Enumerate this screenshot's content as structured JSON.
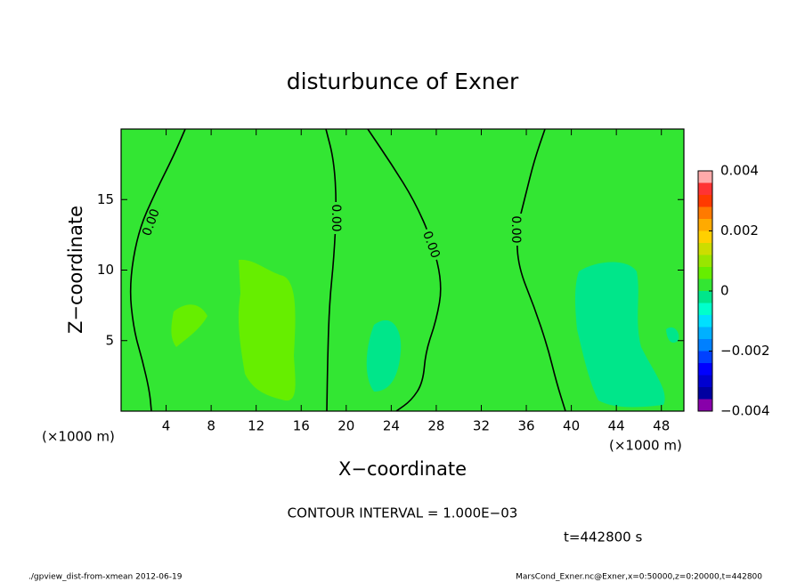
{
  "chart_data": {
    "type": "contour",
    "title": "disturbunce of Exner",
    "x_label": "X−coordinate",
    "y_label": "Z−coordinate",
    "x_unit": "(×1000 m)",
    "y_unit": "(×1000 m)",
    "xlim": [
      0,
      50
    ],
    "ylim": [
      0,
      20
    ],
    "xticks": [
      4,
      8,
      12,
      16,
      20,
      24,
      28,
      32,
      36,
      40,
      44,
      48
    ],
    "yticks": [
      5,
      10,
      15
    ],
    "contours": [
      {
        "level": 0,
        "label": "0.00"
      },
      {
        "level": 0,
        "label": "0.00"
      },
      {
        "level": 0,
        "label": "0.00"
      },
      {
        "level": 0,
        "label": "0.00"
      }
    ],
    "colorbar": {
      "bounds": [
        -0.004,
        -0.0036,
        -0.0032,
        -0.0028,
        -0.0024,
        -0.002,
        -0.0016,
        -0.0012,
        -0.0008,
        -0.0004,
        0,
        0.0004,
        0.0008,
        0.0012,
        0.0016,
        0.002,
        0.0024,
        0.0028,
        0.0032,
        0.0036,
        0.004
      ],
      "colors": [
        "#8800aa",
        "#0000a0",
        "#0000d0",
        "#0000ff",
        "#0040ff",
        "#0080ff",
        "#00b0ff",
        "#00e0ff",
        "#00ffcc",
        "#00e68a",
        "#33e633",
        "#66ee00",
        "#99e600",
        "#ccdd00",
        "#ffd000",
        "#ffaa00",
        "#ff7a00",
        "#ff3a00",
        "#ff3333",
        "#ffaaaa"
      ],
      "ticks": [
        {
          "value": -0.004,
          "label": "−0.004"
        },
        {
          "value": -0.002,
          "label": "−0.002"
        },
        0,
        0.002,
        0.004
      ]
    },
    "contour_interval": "CONTOUR INTERVAL = 1.000E−03",
    "time_label": "t=442800 s",
    "footer_left": "./gpview_dist-from-xmean  2012-06-19",
    "footer_right": "MarsCond_Exner.nc@Exner,x=0:50000,z=0:20000,t=442800"
  }
}
